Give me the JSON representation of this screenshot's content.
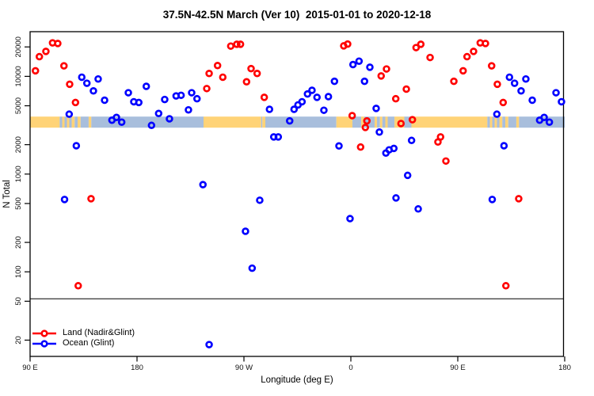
{
  "chart_data": {
    "type": "scatter",
    "title": "37.5N-42.5N March (Ver 10)  2015-01-01 to 2020-12-18",
    "xlabel": "Longitude (deg E)",
    "ylabel": "N Total",
    "x_axis": {
      "range": [
        90,
        540
      ],
      "wraps": "90E eastward through 180, 90W, 0, back to 90E and 180",
      "ticks": [
        {
          "lon": 90,
          "label": "90 E"
        },
        {
          "lon": 180,
          "label": "180"
        },
        {
          "lon": 270,
          "label": "90 W"
        },
        {
          "lon": 360,
          "label": "0"
        },
        {
          "lon": 450,
          "label": "90 E"
        },
        {
          "lon": 540,
          "label": "180"
        }
      ]
    },
    "y_axis": {
      "scale": "log",
      "range": [
        14,
        27000
      ],
      "ticks": [
        {
          "value": 20000,
          "label": "20000"
        },
        {
          "value": 10000,
          "label": "10000"
        },
        {
          "value": 5000,
          "label": "5000"
        },
        {
          "value": 2000,
          "label": "2000"
        },
        {
          "value": 1000,
          "label": "1000"
        },
        {
          "value": 500,
          "label": "500"
        },
        {
          "value": 200,
          "label": "200"
        },
        {
          "value": 100,
          "label": "100"
        },
        {
          "value": 50,
          "label": "50"
        },
        {
          "value": 20,
          "label": "20"
        }
      ]
    },
    "reference_line_value": 53,
    "surface_band": {
      "description": "land/ocean surface-type strip along latitude band",
      "center_value": 3400,
      "land_color": "#FFD377",
      "ocean_color": "#A8BEDC",
      "segments": [
        {
          "from": 90,
          "to": 114.9,
          "type": "land"
        },
        {
          "from": 114.9,
          "to": 117,
          "type": "ocean"
        },
        {
          "from": 117,
          "to": 119,
          "type": "land"
        },
        {
          "from": 119,
          "to": 121,
          "type": "ocean"
        },
        {
          "from": 121,
          "to": 123,
          "type": "land"
        },
        {
          "from": 123,
          "to": 125,
          "type": "ocean"
        },
        {
          "from": 125,
          "to": 127.5,
          "type": "land"
        },
        {
          "from": 127.5,
          "to": 130,
          "type": "ocean"
        },
        {
          "from": 130,
          "to": 132.5,
          "type": "land"
        },
        {
          "from": 132.5,
          "to": 139.3,
          "type": "ocean"
        },
        {
          "from": 139.3,
          "to": 141.5,
          "type": "land"
        },
        {
          "from": 141.5,
          "to": 236,
          "type": "ocean"
        },
        {
          "from": 236,
          "to": 284.5,
          "type": "land"
        },
        {
          "from": 284.5,
          "to": 285.5,
          "type": "ocean"
        },
        {
          "from": 285.5,
          "to": 288,
          "type": "land"
        },
        {
          "from": 288,
          "to": 347.8,
          "type": "ocean"
        },
        {
          "from": 347.8,
          "to": 361.3,
          "type": "land"
        },
        {
          "from": 361.3,
          "to": 368.7,
          "type": "ocean"
        },
        {
          "from": 368.7,
          "to": 371.3,
          "type": "land"
        },
        {
          "from": 371.3,
          "to": 380,
          "type": "ocean"
        },
        {
          "from": 380,
          "to": 382,
          "type": "land"
        },
        {
          "from": 382,
          "to": 384.5,
          "type": "ocean"
        },
        {
          "from": 384.5,
          "to": 386.5,
          "type": "land"
        },
        {
          "from": 386.5,
          "to": 389,
          "type": "ocean"
        },
        {
          "from": 389,
          "to": 391,
          "type": "land"
        },
        {
          "from": 391,
          "to": 396.7,
          "type": "ocean"
        },
        {
          "from": 396.7,
          "to": 405,
          "type": "land"
        },
        {
          "from": 405,
          "to": 411,
          "type": "ocean"
        },
        {
          "from": 411,
          "to": 474.9,
          "type": "land"
        },
        {
          "from": 474.9,
          "to": 477,
          "type": "ocean"
        },
        {
          "from": 477,
          "to": 479,
          "type": "land"
        },
        {
          "from": 479,
          "to": 481,
          "type": "ocean"
        },
        {
          "from": 481,
          "to": 483,
          "type": "land"
        },
        {
          "from": 483,
          "to": 485,
          "type": "ocean"
        },
        {
          "from": 485,
          "to": 487.5,
          "type": "land"
        },
        {
          "from": 487.5,
          "to": 490,
          "type": "ocean"
        },
        {
          "from": 490,
          "to": 492.5,
          "type": "land"
        },
        {
          "from": 492.5,
          "to": 499.3,
          "type": "ocean"
        },
        {
          "from": 499.3,
          "to": 501.5,
          "type": "land"
        },
        {
          "from": 501.5,
          "to": 540,
          "type": "ocean"
        }
      ]
    },
    "series": [
      {
        "name": "Land (Nadir&Glint)",
        "color": "#FF0000",
        "points": [
          [
            94.5,
            11400
          ],
          [
            97.8,
            15900
          ],
          [
            103.3,
            18000
          ],
          [
            108.9,
            22000
          ],
          [
            113.3,
            21700
          ],
          [
            118.5,
            12800
          ],
          [
            123.3,
            8300
          ],
          [
            128.2,
            5400
          ],
          [
            130.5,
            72
          ],
          [
            141.3,
            560
          ],
          [
            238.7,
            7500
          ],
          [
            240.7,
            10700
          ],
          [
            247.8,
            12900
          ],
          [
            252.2,
            9800
          ],
          [
            258.9,
            20400
          ],
          [
            264,
            21300
          ],
          [
            267.1,
            21300
          ],
          [
            272.2,
            8800
          ],
          [
            276,
            12000
          ],
          [
            281.1,
            10700
          ],
          [
            287.1,
            6100
          ],
          [
            354,
            20500
          ],
          [
            357.3,
            21400
          ],
          [
            361.1,
            3960
          ],
          [
            368.2,
            1890
          ],
          [
            372.2,
            3000
          ],
          [
            373.5,
            3500
          ],
          [
            385.5,
            10100
          ],
          [
            390,
            11900
          ],
          [
            397.8,
            5900
          ],
          [
            402.2,
            3290
          ],
          [
            406.7,
            7400
          ],
          [
            411.8,
            3600
          ],
          [
            414.9,
            19700
          ],
          [
            418.9,
            21300
          ],
          [
            426.7,
            15600
          ],
          [
            433.3,
            2130
          ],
          [
            435.5,
            2400
          ],
          [
            440,
            1360
          ],
          [
            446.7,
            8900
          ],
          [
            454.5,
            11400
          ],
          [
            457.8,
            15900
          ],
          [
            463.3,
            18000
          ],
          [
            468.9,
            22000
          ],
          [
            473.3,
            21700
          ],
          [
            478.5,
            12800
          ],
          [
            483.3,
            8300
          ],
          [
            488.2,
            5400
          ],
          [
            490.5,
            72
          ],
          [
            501.3,
            560
          ]
        ]
      },
      {
        "name": "Ocean (Glint)",
        "color": "#0000FF",
        "points": [
          [
            119,
            550
          ],
          [
            122.9,
            4100
          ],
          [
            128.9,
            1950
          ],
          [
            133.5,
            9800
          ],
          [
            137.8,
            8500
          ],
          [
            143.3,
            7100
          ],
          [
            147.3,
            9400
          ],
          [
            152.7,
            5700
          ],
          [
            158.9,
            3560
          ],
          [
            162.7,
            3800
          ],
          [
            167.1,
            3400
          ],
          [
            172.7,
            6800
          ],
          [
            177.3,
            5500
          ],
          [
            181.5,
            5400
          ],
          [
            187.8,
            7900
          ],
          [
            192.2,
            3150
          ],
          [
            198.2,
            4170
          ],
          [
            203.3,
            5800
          ],
          [
            207.3,
            3680
          ],
          [
            212.9,
            6300
          ],
          [
            217.1,
            6400
          ],
          [
            223.3,
            4540
          ],
          [
            226,
            6800
          ],
          [
            230.5,
            5900
          ],
          [
            235.5,
            780
          ],
          [
            240.7,
            18
          ],
          [
            271.3,
            260
          ],
          [
            276.9,
            109
          ],
          [
            283.3,
            540
          ],
          [
            291.5,
            4600
          ],
          [
            295.1,
            2400
          ],
          [
            298.9,
            2400
          ],
          [
            308.5,
            3500
          ],
          [
            312.2,
            4600
          ],
          [
            315.5,
            5100
          ],
          [
            318.9,
            5500
          ],
          [
            323.5,
            6600
          ],
          [
            327.3,
            7200
          ],
          [
            331.5,
            6100
          ],
          [
            337.3,
            4500
          ],
          [
            341.1,
            6200
          ],
          [
            346.2,
            8900
          ],
          [
            350,
            1940
          ],
          [
            359.3,
            350
          ],
          [
            361.8,
            13200
          ],
          [
            366.9,
            14300
          ],
          [
            371.5,
            8900
          ],
          [
            376,
            12400
          ],
          [
            381.3,
            4700
          ],
          [
            384,
            2690
          ],
          [
            389.5,
            1640
          ],
          [
            392.2,
            1770
          ],
          [
            396.2,
            1830
          ],
          [
            398,
            570
          ],
          [
            407.8,
            970
          ],
          [
            411.1,
            2210
          ],
          [
            416.7,
            440
          ],
          [
            479,
            550
          ],
          [
            482.9,
            4100
          ],
          [
            488.9,
            1950
          ],
          [
            493.5,
            9800
          ],
          [
            497.8,
            8500
          ],
          [
            503.3,
            7100
          ],
          [
            507.3,
            9400
          ],
          [
            512.7,
            5700
          ],
          [
            518.9,
            3560
          ],
          [
            522.7,
            3800
          ],
          [
            527.1,
            3400
          ],
          [
            532.7,
            6800
          ],
          [
            537.3,
            5500
          ]
        ]
      }
    ]
  }
}
